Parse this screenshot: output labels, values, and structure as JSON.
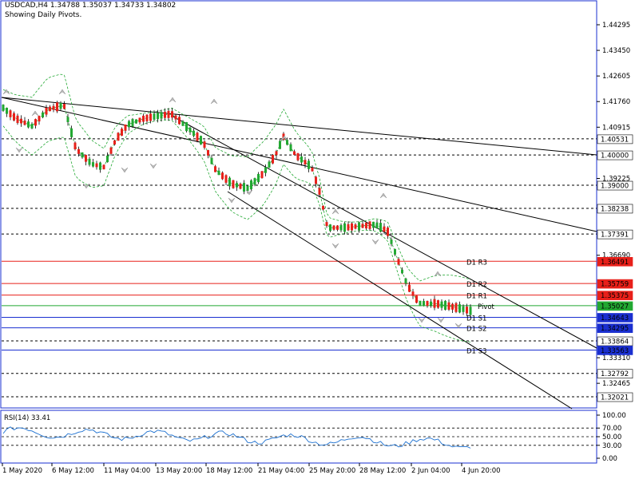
{
  "header": {
    "symbol_line": "USDCAD,H4  1.34788 1.35037 1.34733 1.34802",
    "subtitle": "Showing Daily Pivots."
  },
  "price_axis_ticks": [
    "1.44295",
    "1.43450",
    "1.42605",
    "1.41760",
    "1.40915",
    "1.39225",
    "1.36690",
    "1.33310",
    "1.32465"
  ],
  "highlight_labels": [
    {
      "text": "1.40531",
      "price": 1.40531,
      "bg": "#ffffff",
      "fg": "#000000",
      "line": "dash"
    },
    {
      "text": "1.40000",
      "price": 1.4,
      "bg": "#ffffff",
      "fg": "#000000",
      "line": "dash"
    },
    {
      "text": "1.39000",
      "price": 1.39,
      "bg": "#ffffff",
      "fg": "#000000",
      "line": "dash"
    },
    {
      "text": "1.38238",
      "price": 1.38238,
      "bg": "#ffffff",
      "fg": "#000000",
      "line": "dash"
    },
    {
      "text": "1.37391",
      "price": 1.37391,
      "bg": "#ffffff",
      "fg": "#000000",
      "line": "dash"
    },
    {
      "text": "1.36491",
      "price": 1.36491,
      "bg": "#e8201a",
      "fg": "#ffffff",
      "line": "red"
    },
    {
      "text": "1.35759",
      "price": 1.35759,
      "bg": "#e8201a",
      "fg": "#ffffff",
      "line": "red"
    },
    {
      "text": "1.35375",
      "price": 1.35375,
      "bg": "#e8201a",
      "fg": "#ffffff",
      "line": "red"
    },
    {
      "text": "1.35027",
      "price": 1.35027,
      "bg": "#22a832",
      "fg": "#ffffff",
      "line": "green"
    },
    {
      "text": "1.34643",
      "price": 1.34643,
      "bg": "#1a2fd0",
      "fg": "#ffffff",
      "line": "blue"
    },
    {
      "text": "1.34295",
      "price": 1.34295,
      "bg": "#1a2fd0",
      "fg": "#ffffff",
      "line": "blue"
    },
    {
      "text": "1.33864",
      "price": 1.33864,
      "bg": "#ffffff",
      "fg": "#000000",
      "line": "dash"
    },
    {
      "text": "1.33563",
      "price": 1.33563,
      "bg": "#1a2fd0",
      "fg": "#ffffff",
      "line": "blue"
    },
    {
      "text": "1.32792",
      "price": 1.32792,
      "bg": "#ffffff",
      "fg": "#000000",
      "line": "dash"
    },
    {
      "text": "1.32021",
      "price": 1.32021,
      "bg": "#ffffff",
      "fg": "#000000",
      "line": "dash"
    }
  ],
  "pivot_labels": [
    {
      "text": "D1  R3",
      "price": 1.36491,
      "color": "#e8201a"
    },
    {
      "text": "D1  R2",
      "price": 1.35759,
      "color": "#e8201a"
    },
    {
      "text": "D1  R1",
      "price": 1.35375,
      "color": "#e8201a"
    },
    {
      "text": "Pivot",
      "price": 1.35027,
      "color": "#22a832"
    },
    {
      "text": "D1  S1",
      "price": 1.34643,
      "color": "#1a2fd0"
    },
    {
      "text": "D1  S2",
      "price": 1.34295,
      "color": "#1a2fd0"
    },
    {
      "text": "D1  S3",
      "price": 1.33563,
      "color": "#1a2fd0"
    }
  ],
  "rsi": {
    "title": "RSI(14) 33.41",
    "ticks": [
      "100.00",
      "70.00",
      "50.00",
      "30.00",
      "0.00"
    ]
  },
  "time_axis": [
    "1 May 2020",
    "6 May 12:00",
    "11 May 04:00",
    "13 May 20:00",
    "18 May 12:00",
    "21 May 04:00",
    "25 May 20:00",
    "28 May 12:00",
    "2 Jun 04:00",
    "4 Jun 20:00"
  ],
  "colors": {
    "bull": "#22a832",
    "bear": "#e8201a",
    "rsi": "#1a6fd0",
    "bands": "#22a832",
    "frame": "#1a2fd0"
  }
}
